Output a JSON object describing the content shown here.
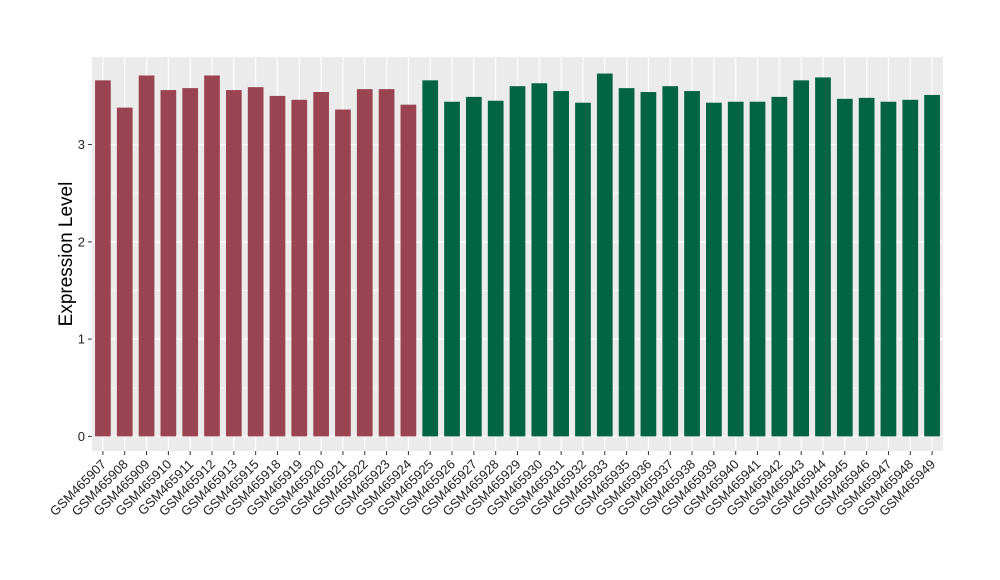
{
  "chart_data": {
    "type": "bar",
    "title": "",
    "xlabel": "",
    "ylabel": "Expression Level",
    "ylim": [
      -0.15,
      3.9
    ],
    "yticks": [
      0,
      1,
      2,
      3
    ],
    "grid": true,
    "colors": {
      "panel_bg": "#ebebeb",
      "grid": "#ffffff",
      "group_a": "#9b4451",
      "group_b": "#036443"
    },
    "categories": [
      "GSM465907",
      "GSM465908",
      "GSM465909",
      "GSM465910",
      "GSM465911",
      "GSM465912",
      "GSM465913",
      "GSM465915",
      "GSM465918",
      "GSM465919",
      "GSM465920",
      "GSM465921",
      "GSM465922",
      "GSM465923",
      "GSM465924",
      "GSM465925",
      "GSM465926",
      "GSM465927",
      "GSM465928",
      "GSM465929",
      "GSM465930",
      "GSM465931",
      "GSM465932",
      "GSM465933",
      "GSM465935",
      "GSM465936",
      "GSM465937",
      "GSM465938",
      "GSM465939",
      "GSM465940",
      "GSM465941",
      "GSM465942",
      "GSM465943",
      "GSM465944",
      "GSM465945",
      "GSM465946",
      "GSM465947",
      "GSM465948",
      "GSM465949"
    ],
    "values": [
      3.66,
      3.38,
      3.71,
      3.56,
      3.58,
      3.71,
      3.56,
      3.59,
      3.5,
      3.46,
      3.54,
      3.36,
      3.57,
      3.57,
      3.41,
      3.66,
      3.44,
      3.49,
      3.45,
      3.6,
      3.63,
      3.55,
      3.43,
      3.73,
      3.58,
      3.54,
      3.6,
      3.55,
      3.43,
      3.44,
      3.44,
      3.49,
      3.66,
      3.69,
      3.47,
      3.48,
      3.44,
      3.46,
      3.51
    ],
    "groups": [
      "a",
      "a",
      "a",
      "a",
      "a",
      "a",
      "a",
      "a",
      "a",
      "a",
      "a",
      "a",
      "a",
      "a",
      "a",
      "b",
      "b",
      "b",
      "b",
      "b",
      "b",
      "b",
      "b",
      "b",
      "b",
      "b",
      "b",
      "b",
      "b",
      "b",
      "b",
      "b",
      "b",
      "b",
      "b",
      "b",
      "b",
      "b",
      "b"
    ]
  }
}
